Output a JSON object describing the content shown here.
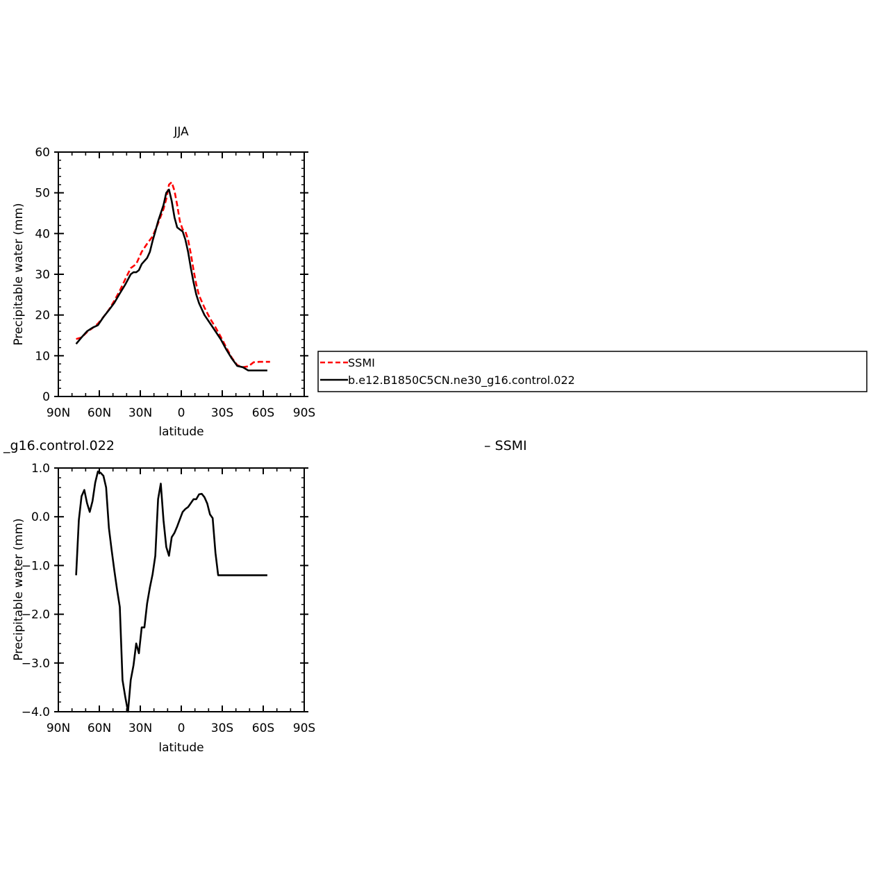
{
  "chart_data": [
    {
      "type": "line",
      "title": "JJA",
      "xlabel": "latitude",
      "ylabel": "Precipitable water (mm)",
      "xlim": [
        90,
        -90
      ],
      "ylim": [
        0,
        60
      ],
      "xticks": [
        90,
        60,
        30,
        0,
        -30,
        -60,
        -90
      ],
      "xtick_labels": [
        "90N",
        "60N",
        "30N",
        "0",
        "30S",
        "60S",
        "90S"
      ],
      "yticks": [
        0,
        10,
        20,
        30,
        40,
        50,
        60
      ],
      "ytick_labels": [
        "0",
        "10",
        "20",
        "30",
        "40",
        "50",
        "60"
      ],
      "legend_position": "right, outside plot",
      "series": [
        {
          "name": "SSMI",
          "color": "#ff0000",
          "dash": "dashed",
          "x": [
            77,
            73,
            69,
            65,
            61,
            57,
            53,
            49,
            45,
            41,
            37,
            33,
            29,
            25,
            21,
            17,
            13,
            11,
            9,
            7,
            5,
            3,
            1,
            -1,
            -3,
            -5,
            -7,
            -9,
            -11,
            -13,
            -17,
            -21,
            -25,
            -29,
            -33,
            -37,
            -41,
            -45,
            -49,
            -53,
            -57,
            -61,
            -63,
            -65
          ],
          "y": [
            14.1,
            14.5,
            15.8,
            16.8,
            17.9,
            19.5,
            21.3,
            23.5,
            26.0,
            28.8,
            31.5,
            32.5,
            35.5,
            37.5,
            39.3,
            42.5,
            46.0,
            48.5,
            52.0,
            52.6,
            50.5,
            47.0,
            43.0,
            41.0,
            40.5,
            38.5,
            35.0,
            31.0,
            27.5,
            24.8,
            21.8,
            19.2,
            17.0,
            14.6,
            12.0,
            9.5,
            7.7,
            7.2,
            7.4,
            8.4,
            8.5,
            8.5,
            8.5,
            8.5
          ]
        },
        {
          "name": "b.e12.B1850C5CN.ne30_g16.control.022",
          "color": "#000000",
          "dash": "solid",
          "x": [
            77,
            73,
            69,
            65,
            61,
            57,
            53,
            49,
            45,
            41,
            37,
            35,
            33,
            31,
            29,
            25,
            23,
            21,
            19,
            17,
            13,
            11,
            9,
            7,
            5,
            3,
            1,
            -1,
            -3,
            -5,
            -7,
            -9,
            -11,
            -13,
            -17,
            -21,
            -25,
            -29,
            -33,
            -37,
            -41,
            -45,
            -49,
            -53,
            -57,
            -61,
            -63
          ],
          "y": [
            12.9,
            14.5,
            16.0,
            16.9,
            17.5,
            19.5,
            21.2,
            23.0,
            25.3,
            27.5,
            30.0,
            30.5,
            30.5,
            31.0,
            32.5,
            34.0,
            35.5,
            38.2,
            40.5,
            43.0,
            47.0,
            50.0,
            50.8,
            48.0,
            44.0,
            41.5,
            41.0,
            40.5,
            38.5,
            35.5,
            31.5,
            28.0,
            25.0,
            22.9,
            20.0,
            18.0,
            16.0,
            14.0,
            11.5,
            9.3,
            7.5,
            7.2,
            6.4,
            6.4,
            6.4,
            6.4,
            6.4
          ]
        }
      ]
    },
    {
      "type": "line",
      "title": "_g16.control.022",
      "title_right": "– SSMI",
      "xlabel": "latitude",
      "ylabel": "Precipitable water (mm)",
      "xlim": [
        90,
        -90
      ],
      "ylim": [
        -4.0,
        1.0
      ],
      "xticks": [
        90,
        60,
        30,
        0,
        -30,
        -60,
        -90
      ],
      "xtick_labels": [
        "90N",
        "60N",
        "30N",
        "0",
        "30S",
        "60S",
        "90S"
      ],
      "yticks": [
        -4.0,
        -3.0,
        -2.0,
        -1.0,
        0.0,
        1.0
      ],
      "ytick_labels": [
        "−4.0",
        "−3.0",
        "−2.0",
        "−1.0",
        "0.0",
        "1.0"
      ],
      "series": [
        {
          "color": "#000000",
          "dash": "solid",
          "x": [
            77,
            75,
            73,
            71,
            69,
            67,
            65,
            63,
            61,
            59,
            57,
            55,
            53,
            51,
            49,
            47,
            45,
            43,
            41,
            39,
            37,
            35,
            33,
            31,
            29,
            27,
            25,
            23,
            21,
            19,
            17,
            15,
            13,
            11,
            9,
            7,
            5,
            3,
            1,
            -1,
            -3,
            -5,
            -7,
            -9,
            -11,
            -13,
            -15,
            -17,
            -19,
            -21,
            -23,
            -25,
            -27,
            -29,
            -31,
            -33,
            -35,
            -37,
            -39,
            -41,
            -43,
            -45,
            -47,
            -49,
            -51,
            -53,
            -55,
            -57,
            -59,
            -61,
            -63
          ],
          "y": [
            -1.2,
            -0.07,
            0.42,
            0.55,
            0.28,
            0.1,
            0.32,
            0.7,
            0.93,
            0.9,
            0.84,
            0.6,
            -0.23,
            -0.68,
            -1.1,
            -1.5,
            -1.85,
            -3.35,
            -3.7,
            -4.0,
            -3.35,
            -3.05,
            -2.6,
            -2.8,
            -2.27,
            -2.27,
            -1.78,
            -1.45,
            -1.18,
            -0.8,
            0.36,
            0.68,
            -0.07,
            -0.62,
            -0.8,
            -0.42,
            -0.33,
            -0.2,
            -0.05,
            0.1,
            0.16,
            0.2,
            0.28,
            0.36,
            0.36,
            0.46,
            0.47,
            0.4,
            0.27,
            0.05,
            -0.03,
            -0.74,
            -1.2,
            -1.2,
            -1.2,
            -1.2,
            -1.2,
            -1.2,
            -1.2,
            -1.2,
            -1.2,
            -1.2,
            -1.2,
            -1.2,
            -1.2,
            -1.2,
            -1.2,
            -1.2,
            -1.2,
            -1.2,
            -1.2
          ]
        }
      ]
    }
  ],
  "legend": {
    "items": [
      {
        "label": "SSMI",
        "color": "#ff0000",
        "dash": "dashed"
      },
      {
        "label": "b.e12.B1850C5CN.ne30_g16.control.022",
        "color": "#000000",
        "dash": "solid"
      }
    ]
  }
}
